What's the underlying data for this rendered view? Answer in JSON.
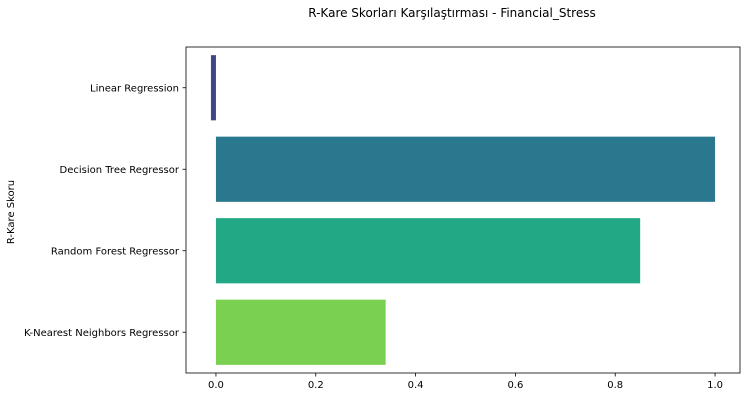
{
  "chart_data": {
    "type": "bar",
    "orientation": "horizontal",
    "title": "R-Kare Skorları Karşılaştırması - Financial_Stress",
    "ylabel": "R-Kare Skoru",
    "xlabel": "",
    "categories": [
      "Linear Regression",
      "Decision Tree Regressor",
      "Random Forest Regressor",
      "K-Nearest Neighbors Regressor"
    ],
    "values": [
      -0.01,
      1.0,
      0.85,
      0.34
    ],
    "colors": [
      "#414487",
      "#2a788e",
      "#22a884",
      "#7ad151"
    ],
    "xlim": [
      -0.06,
      1.05
    ],
    "xticks": [
      0.0,
      0.2,
      0.4,
      0.6,
      0.8,
      1.0
    ],
    "xtick_labels": [
      "0.0",
      "0.2",
      "0.4",
      "0.6",
      "0.8",
      "1.0"
    ],
    "grid": false,
    "legend": "none"
  }
}
